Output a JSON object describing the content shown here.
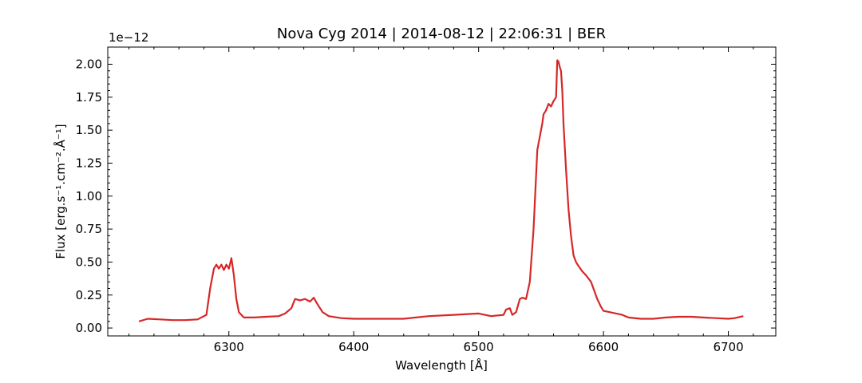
{
  "chart_data": {
    "type": "line",
    "title": "Nova Cyg 2014 | 2014-08-12 | 22:06:31 | BER",
    "xlabel": "Wavelength [Å]",
    "ylabel": "Flux [erg.s⁻¹.cm⁻².Å⁻¹]",
    "y_offset_label": "1e−12",
    "xlim": [
      6203,
      6738
    ],
    "ylim": [
      -0.06,
      2.13
    ],
    "y_scale_factor": 1e-12,
    "xticks": [
      6300,
      6400,
      6500,
      6600,
      6700
    ],
    "xtick_labels": [
      "6300",
      "6400",
      "6500",
      "6600",
      "6700"
    ],
    "yticks": [
      0.0,
      0.25,
      0.5,
      0.75,
      1.0,
      1.25,
      1.5,
      1.75,
      2.0
    ],
    "ytick_labels": [
      "0.00",
      "0.25",
      "0.50",
      "0.75",
      "1.00",
      "1.25",
      "1.50",
      "1.75",
      "2.00"
    ],
    "grid": false,
    "line_color": "#d62728",
    "series": [
      {
        "x": [
          6228,
          6235,
          6245,
          6255,
          6265,
          6275,
          6282,
          6285,
          6288,
          6290,
          6292,
          6294,
          6296,
          6298,
          6300,
          6302,
          6304,
          6306,
          6308,
          6312,
          6320,
          6330,
          6340,
          6345,
          6350,
          6353,
          6357,
          6361,
          6365,
          6368,
          6371,
          6375,
          6380,
          6390,
          6400,
          6420,
          6440,
          6460,
          6480,
          6500,
          6510,
          6520,
          6522,
          6525,
          6527,
          6530,
          6533,
          6535,
          6538,
          6541,
          6544,
          6547,
          6549,
          6551,
          6552,
          6554,
          6556,
          6558,
          6560,
          6562,
          6563,
          6564,
          6565,
          6566,
          6567,
          6568,
          6570,
          6572,
          6574,
          6576,
          6578,
          6580,
          6583,
          6586,
          6590,
          6595,
          6598,
          6600,
          6605,
          6615,
          6620,
          6630,
          6640,
          6650,
          6660,
          6670,
          6680,
          6690,
          6700,
          6705,
          6712
        ],
        "y": [
          0.05,
          0.07,
          0.065,
          0.06,
          0.06,
          0.065,
          0.1,
          0.3,
          0.45,
          0.48,
          0.45,
          0.48,
          0.44,
          0.48,
          0.45,
          0.53,
          0.4,
          0.22,
          0.12,
          0.08,
          0.08,
          0.085,
          0.09,
          0.11,
          0.15,
          0.22,
          0.21,
          0.22,
          0.2,
          0.23,
          0.18,
          0.12,
          0.09,
          0.075,
          0.07,
          0.07,
          0.07,
          0.09,
          0.1,
          0.11,
          0.09,
          0.1,
          0.14,
          0.15,
          0.1,
          0.12,
          0.22,
          0.23,
          0.22,
          0.35,
          0.75,
          1.35,
          1.45,
          1.55,
          1.62,
          1.65,
          1.7,
          1.68,
          1.72,
          1.75,
          2.03,
          2.02,
          1.98,
          1.95,
          1.8,
          1.55,
          1.2,
          0.9,
          0.7,
          0.55,
          0.5,
          0.47,
          0.43,
          0.4,
          0.35,
          0.22,
          0.16,
          0.13,
          0.12,
          0.1,
          0.08,
          0.07,
          0.07,
          0.08,
          0.085,
          0.085,
          0.08,
          0.075,
          0.07,
          0.075,
          0.09
        ]
      }
    ]
  }
}
